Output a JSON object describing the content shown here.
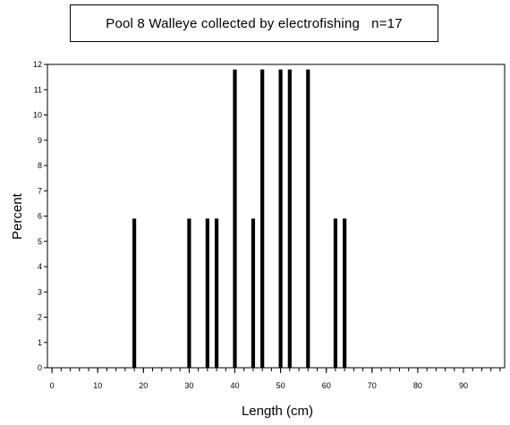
{
  "chart_data": {
    "type": "bar",
    "title": "Pool 8 Walleye collected by electrofishing   n=17",
    "xlabel": "Length (cm)",
    "ylabel": "Percent",
    "xlim": [
      -1,
      99
    ],
    "ylim": [
      0,
      12
    ],
    "x_ticks": [
      "0",
      "10",
      "20",
      "30",
      "40",
      "50",
      "60",
      "70",
      "80",
      "90"
    ],
    "y_ticks": [
      "0",
      "1",
      "2",
      "3",
      "4",
      "5",
      "6",
      "7",
      "8",
      "9",
      "10",
      "11",
      "12"
    ],
    "bin_width_cm": 1,
    "x": [
      18,
      30,
      34,
      36,
      40,
      44,
      46,
      50,
      52,
      56,
      62,
      64
    ],
    "values": [
      5.9,
      5.9,
      5.9,
      5.9,
      11.8,
      5.9,
      11.8,
      11.8,
      11.8,
      11.8,
      5.9,
      5.9
    ],
    "bar_color": "#000000",
    "grid": false,
    "legend": "none"
  }
}
